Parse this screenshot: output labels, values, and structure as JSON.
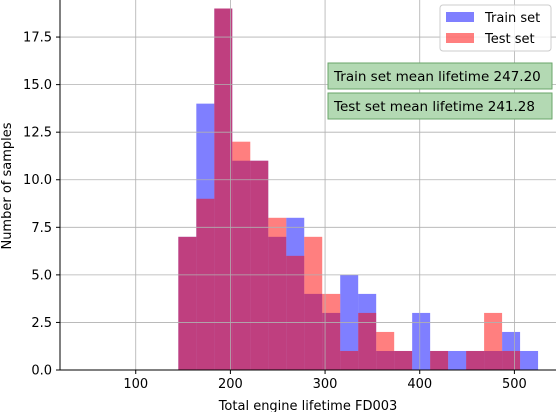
{
  "chart_data": {
    "type": "bar",
    "subtype": "overlaid-histogram",
    "title": "",
    "xlabel": "Total engine lifetime FD003",
    "ylabel": "Number of samples",
    "xlim": [
      20,
      545
    ],
    "ylim": [
      0,
      19.5
    ],
    "xticks": [
      100,
      200,
      300,
      400,
      500
    ],
    "yticks": [
      0.0,
      2.5,
      5.0,
      7.5,
      10.0,
      12.5,
      15.0,
      17.5
    ],
    "ytick_labels": [
      "0.0",
      "2.5",
      "5.0",
      "7.5",
      "10.0",
      "12.5",
      "15.0",
      "17.5"
    ],
    "grid": true,
    "legend_position": "top-right",
    "bin_edges": [
      145,
      164,
      183,
      202,
      221,
      240,
      259,
      278,
      297,
      316,
      335,
      354,
      373,
      392,
      411,
      430,
      449,
      468,
      487,
      506,
      525
    ],
    "series": [
      {
        "name": "Train set",
        "color": "#0000ff",
        "opacity": 0.5,
        "counts": [
          7,
          14,
          19,
          11,
          11,
          7,
          8,
          4,
          3,
          5,
          4,
          1,
          1,
          3,
          1,
          1,
          1,
          1,
          2,
          1
        ]
      },
      {
        "name": "Test set",
        "color": "#ff0000",
        "opacity": 0.5,
        "counts": [
          7,
          9,
          19,
          12,
          11,
          8,
          6,
          7,
          4,
          1,
          3,
          2,
          1,
          0,
          1,
          0,
          1,
          3,
          1,
          0
        ]
      }
    ],
    "annotations": [
      {
        "text": "Train set mean lifetime 247.20"
      },
      {
        "text": "Test set mean lifetime 241.28"
      }
    ],
    "annotation_box_color": "#b3d9b3"
  }
}
